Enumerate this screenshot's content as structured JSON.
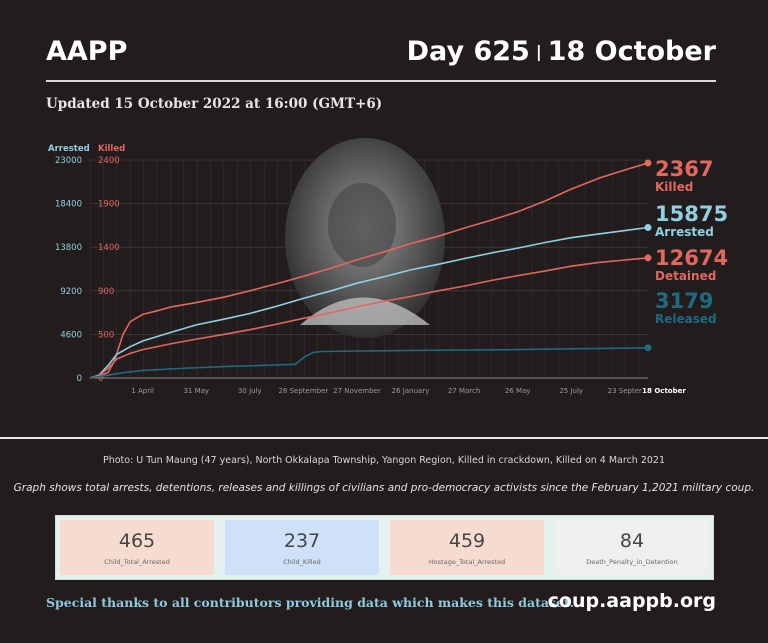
{
  "header": {
    "brand": "AAPP",
    "day": "Day 625",
    "separator": "|",
    "date": "18 October",
    "updated": "Updated 15 October 2022 at 16:00 (GMT+6)"
  },
  "chart_data": {
    "type": "line",
    "left_axis_label": "Arrested",
    "right_axis_label": "Killed",
    "left_ticks": [
      0,
      4600,
      9200,
      13800,
      18400,
      23000
    ],
    "right_ticks": [
      0,
      500,
      900,
      1400,
      1900,
      2400
    ],
    "left_ylim": [
      0,
      23000
    ],
    "right_ylim": [
      0,
      2400
    ],
    "x_ticks": [
      "1 April",
      "31 May",
      "30 July",
      "28 September",
      "27 November",
      "26 January",
      "27 March",
      "26 May",
      "25 July",
      "23 Septer",
      "18 October"
    ],
    "x_day_range": [
      0,
      625
    ],
    "x_tick_days": [
      59,
      119,
      179,
      239,
      299,
      359,
      419,
      479,
      539,
      599,
      625
    ],
    "grid": true,
    "series": [
      {
        "name": "Killed",
        "scale": "right",
        "color": "#e2675f",
        "final_value": "2367",
        "final_label": "Killed",
        "x": [
          0,
          10,
          20,
          27,
          32,
          37,
          45,
          59,
          75,
          90,
          119,
          150,
          179,
          210,
          239,
          270,
          299,
          330,
          359,
          390,
          419,
          450,
          479,
          510,
          539,
          570,
          599,
          625
        ],
        "values": [
          0,
          20,
          60,
          180,
          330,
          480,
          620,
          700,
          740,
          780,
          830,
          890,
          960,
          1040,
          1120,
          1210,
          1300,
          1390,
          1480,
          1560,
          1650,
          1740,
          1830,
          1950,
          2080,
          2200,
          2290,
          2367
        ]
      },
      {
        "name": "Arrested",
        "scale": "left",
        "color": "#8fd1e2",
        "final_value": "15875",
        "final_label": "Arrested",
        "x": [
          0,
          10,
          20,
          30,
          45,
          59,
          90,
          119,
          150,
          179,
          210,
          239,
          270,
          299,
          330,
          359,
          390,
          419,
          450,
          479,
          510,
          539,
          570,
          599,
          625
        ],
        "values": [
          0,
          300,
          1300,
          2500,
          3300,
          3900,
          4800,
          5600,
          6200,
          6800,
          7600,
          8400,
          9200,
          10000,
          10700,
          11400,
          12000,
          12600,
          13200,
          13700,
          14300,
          14800,
          15200,
          15550,
          15875
        ]
      },
      {
        "name": "Detained",
        "scale": "left",
        "color": "#e2675f",
        "final_value": "12674",
        "final_label": "Detained",
        "x": [
          0,
          10,
          20,
          30,
          45,
          59,
          90,
          119,
          150,
          179,
          210,
          239,
          270,
          299,
          330,
          359,
          390,
          419,
          450,
          479,
          510,
          539,
          570,
          599,
          625
        ],
        "values": [
          0,
          250,
          1000,
          2000,
          2600,
          3000,
          3600,
          4100,
          4600,
          5100,
          5700,
          6300,
          6900,
          7500,
          8100,
          8600,
          9200,
          9700,
          10300,
          10800,
          11300,
          11800,
          12200,
          12450,
          12674
        ]
      },
      {
        "name": "Released",
        "scale": "left",
        "color": "#1e6a80",
        "final_value": "3179",
        "final_label": "Released",
        "x": [
          0,
          20,
          40,
          59,
          100,
          150,
          200,
          230,
          240,
          250,
          260,
          300,
          359,
          419,
          479,
          539,
          599,
          625
        ],
        "values": [
          0,
          300,
          600,
          800,
          1000,
          1200,
          1350,
          1450,
          2200,
          2700,
          2800,
          2850,
          2900,
          2950,
          3000,
          3080,
          3140,
          3179
        ]
      }
    ]
  },
  "captions": {
    "photo": "Photo: U Tun Maung (47 years), North Okkalapa Township, Yangon Region, Killed in crackdown, Killed on 4 March 2021",
    "graph": "Graph shows total arrests, detentions, releases and killings of civilians and pro-democracy activists since the February 1,2021 military coup."
  },
  "stats": [
    {
      "value": "465",
      "label": "Child_Total_Arrested",
      "color": "#f6dcd0"
    },
    {
      "value": "237",
      "label": "Child_Killed",
      "color": "#cfe1f9"
    },
    {
      "value": "459",
      "label": "Hostage_Total_Arrested",
      "color": "#f6dcd0"
    },
    {
      "value": "84",
      "label": "Death_Penalty_in_Detention",
      "color": "#efefef"
    }
  ],
  "footer": {
    "thanks": "Special thanks to all contributors providing data which makes this dataset.",
    "url": "coup.aappb.org"
  }
}
